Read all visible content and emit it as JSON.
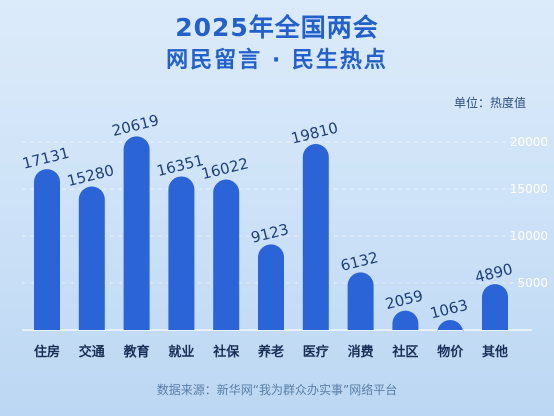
{
  "header": {
    "title_line1": "2025年全国两会",
    "title_line2": "网民留言 · 民生热点"
  },
  "unit_label": "单位：热度值",
  "source_label": "数据来源：新华网“我为群众办实事”网络平台",
  "colors": {
    "bar": "#2a64d6",
    "title": "#2360c9"
  },
  "chart_data": {
    "type": "bar",
    "title": "网民留言 · 民生热点",
    "unit": "单位：热度值",
    "categories": [
      "住房",
      "交通",
      "教育",
      "就业",
      "社保",
      "养老",
      "医疗",
      "消费",
      "社区",
      "物价",
      "其他"
    ],
    "values": [
      17131,
      15280,
      20619,
      16351,
      16022,
      9123,
      19810,
      6132,
      2059,
      1063,
      4890
    ],
    "yticks": [
      5000,
      10000,
      15000,
      20000
    ],
    "ylim": [
      0,
      23000
    ],
    "grid": true,
    "legend": "none"
  }
}
